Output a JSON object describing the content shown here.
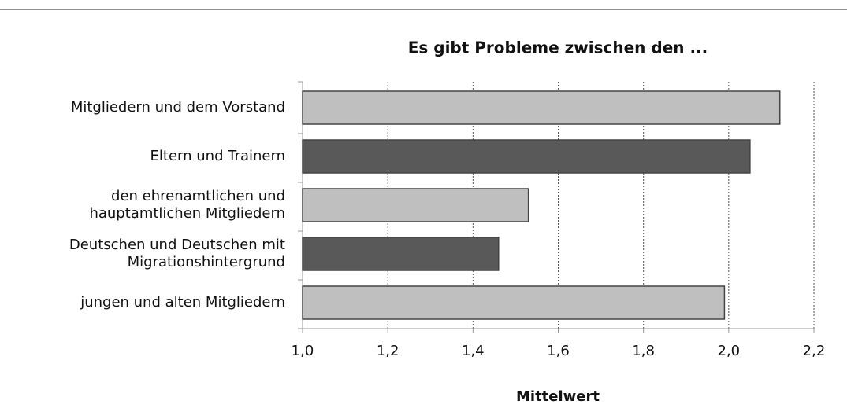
{
  "chart_data": {
    "type": "bar",
    "orientation": "horizontal",
    "title": "Es gibt Probleme zwischen den ...",
    "categories": [
      "Mitgliedern und dem Vorstand",
      "Eltern und Trainern",
      "den ehrenamtlichen und\nhauptamtlichen Mitgliedern",
      "Deutschen und Deutschen mit\nMigrationshintergrund",
      "jungen und alten Mitgliedern"
    ],
    "values": [
      2.12,
      2.05,
      1.53,
      1.46,
      1.99
    ],
    "colors": [
      "#bfbfbf",
      "#595959",
      "#bfbfbf",
      "#595959",
      "#bfbfbf"
    ],
    "xlabel": "Mittelwert",
    "xlim": [
      1.0,
      2.2
    ],
    "xticks": [
      {
        "value": 1.0,
        "label": "1,0"
      },
      {
        "value": 1.2,
        "label": "1,2"
      },
      {
        "value": 1.4,
        "label": "1,4"
      },
      {
        "value": 1.6,
        "label": "1,6"
      },
      {
        "value": 1.8,
        "label": "1,8"
      },
      {
        "value": 2.0,
        "label": "2,0"
      },
      {
        "value": 2.2,
        "label": "2,2"
      }
    ],
    "grid": true
  }
}
